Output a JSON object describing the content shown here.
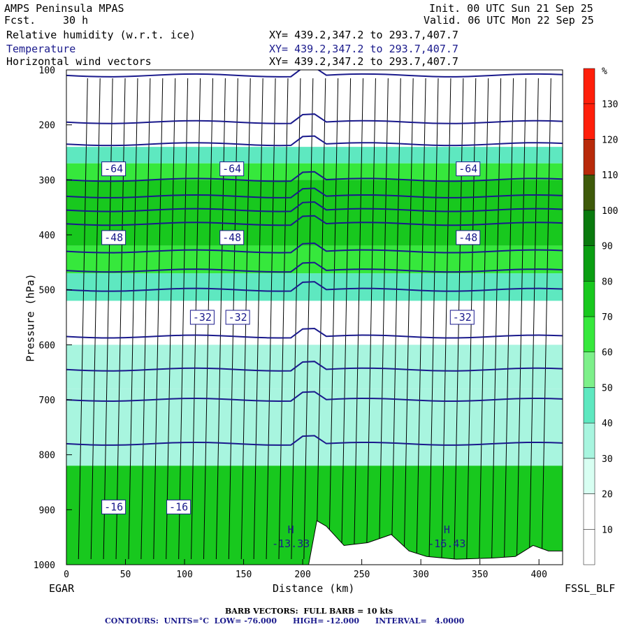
{
  "header": {
    "model": "AMPS Peninsula MPAS",
    "fcst_label": "Fcst.",
    "fcst_value": "30 h",
    "init": "Init. 00 UTC Sun 21 Sep 25",
    "valid": "Valid. 06 UTC Mon 22 Sep 25",
    "fields": [
      {
        "name": "Relative humidity (w.r.t. ice)",
        "xy": "XY= 439.2,347.2 to 293.7,407.7",
        "color": "#000000"
      },
      {
        "name": "Temperature",
        "xy": "XY= 439.2,347.2 to 293.7,407.7",
        "color": "#1a1a8c"
      },
      {
        "name": "Horizontal wind vectors",
        "xy": "XY= 439.2,347.2 to 293.7,407.7",
        "color": "#000000"
      }
    ]
  },
  "footer": {
    "start_station": "EGAR",
    "end_station": "FSSL_BLF",
    "barb_note": "BARB VECTORS:  FULL BARB = 10 kts",
    "contour_note": "CONTOURS:  UNITS=°C  LOW= -76.000      HIGH= -12.000      INTERVAL=   4.0000"
  },
  "chart_data": {
    "type": "heatmap",
    "xlabel": "Distance (km)",
    "ylabel": "Pressure (hPa)",
    "xlim": [
      0,
      420
    ],
    "ylim": [
      1000,
      100
    ],
    "x_ticks": [
      0,
      50,
      100,
      150,
      200,
      250,
      300,
      350,
      400
    ],
    "y_ticks": [
      100,
      200,
      300,
      400,
      500,
      600,
      700,
      800,
      900,
      1000
    ],
    "colorbar": {
      "unit": "%",
      "levels": [
        10,
        20,
        30,
        40,
        50,
        60,
        70,
        80,
        90,
        100,
        110,
        120,
        130
      ],
      "colors": [
        "#ffffff",
        "#ffffff",
        "#d8fff2",
        "#a8f5df",
        "#5ee8c0",
        "#7df08a",
        "#36e83c",
        "#18c81e",
        "#0a9e12",
        "#0a7a0e",
        "#3e5a0a",
        "#b82a0a",
        "#ff1f0a",
        "#ff1f0a"
      ]
    },
    "rh_layers": [
      {
        "p_top": 240,
        "p_bot": 270,
        "rh": 45
      },
      {
        "p_top": 270,
        "p_bot": 300,
        "rh": 60
      },
      {
        "p_top": 300,
        "p_bot": 420,
        "rh": 75
      },
      {
        "p_top": 420,
        "p_bot": 470,
        "rh": 60
      },
      {
        "p_top": 470,
        "p_bot": 520,
        "rh": 40
      },
      {
        "p_top": 600,
        "p_bot": 680,
        "rh": 35
      },
      {
        "p_top": 680,
        "p_bot": 820,
        "rh": 38
      },
      {
        "p_top": 820,
        "p_bot": 1000,
        "rh": 70
      }
    ],
    "isotherms": [
      {
        "label": "-64",
        "p_left": 280,
        "p_right": 285
      },
      {
        "label": "-48",
        "p_left": 405,
        "p_right": 430
      },
      {
        "label": "-32",
        "p_left": 550,
        "p_right": 555
      },
      {
        "label": "-16",
        "p_left": 895,
        "p_right": 880
      }
    ],
    "isotherm_levels": [
      110,
      195,
      235,
      300,
      330,
      355,
      380,
      430,
      465,
      500,
      585,
      645,
      700,
      780
    ],
    "labels_at_km": {
      "-64": [
        40,
        140,
        340
      ],
      "-48": [
        40,
        140,
        340
      ],
      "-32": [
        115,
        145,
        335
      ],
      "-16": [
        40,
        95
      ]
    },
    "highs": [
      {
        "marker": "H",
        "value": "-13.33",
        "x": 190,
        "p": 958
      },
      {
        "marker": "H",
        "value": "-16.43",
        "x": 322,
        "p": 958
      }
    ],
    "terrain": [
      {
        "x": 205,
        "p": 1000
      },
      {
        "x": 212,
        "p": 920
      },
      {
        "x": 220,
        "p": 930
      },
      {
        "x": 235,
        "p": 965
      },
      {
        "x": 255,
        "p": 960
      },
      {
        "x": 275,
        "p": 945
      },
      {
        "x": 290,
        "p": 975
      },
      {
        "x": 305,
        "p": 985
      },
      {
        "x": 330,
        "p": 990
      },
      {
        "x": 360,
        "p": 988
      },
      {
        "x": 380,
        "p": 985
      },
      {
        "x": 395,
        "p": 965
      },
      {
        "x": 408,
        "p": 975
      },
      {
        "x": 420,
        "p": 975
      }
    ]
  }
}
